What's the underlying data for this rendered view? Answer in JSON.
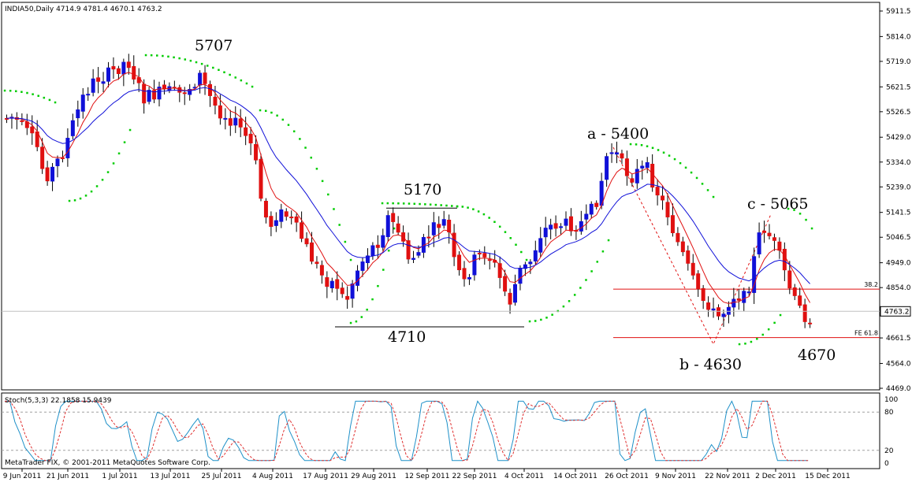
{
  "header": {
    "symbol_line": "INDIA50,Daily  4714.9 4781.4 4670.1 4763.2"
  },
  "stoch": {
    "label": "Stoch(5,3,3) 22.1858 15.9439",
    "levels": [
      "100",
      "80",
      "20",
      "0"
    ],
    "colors": {
      "k": "#1e90c8",
      "d": "#e03030"
    }
  },
  "copyright": "MetaTrader FIX, © 2001-2011 MetaQuotes Software Corp.",
  "chart_data": {
    "type": "candlestick",
    "title": "INDIA50,Daily",
    "ohlc_header": [
      4714.9,
      4781.4,
      4670.1,
      4763.2
    ],
    "last_price_label": "4763.2",
    "y_axis": {
      "ticks": [
        "5911.5",
        "5814.0",
        "5719.0",
        "5621.5",
        "5526.5",
        "5429.0",
        "5334.0",
        "5239.0",
        "5141.5",
        "5046.5",
        "4949.0",
        "4854.0",
        "4759.0",
        "4661.5",
        "4564.0",
        "4469.0"
      ],
      "range": [
        4469,
        5911.5
      ]
    },
    "x_axis": {
      "ticks": [
        "9 Jun 2011",
        "21 Jun 2011",
        "1 Jul 2011",
        "13 Jul 2011",
        "25 Jul 2011",
        "4 Aug 2011",
        "17 Aug 2011",
        "29 Aug 2011",
        "12 Sep 2011",
        "22 Sep 2011",
        "4 Oct 2011",
        "14 Oct 2011",
        "26 Oct 2011",
        "9 Nov 2011",
        "22 Nov 2011",
        "2 Dec 2011",
        "15 Dec 2011"
      ]
    },
    "annotations": [
      {
        "text": "5707",
        "price": 5707
      },
      {
        "text": "5170",
        "price": 5170
      },
      {
        "text": "4710",
        "price": 4710
      },
      {
        "text": "a - 5400",
        "price": 5400
      },
      {
        "text": "b - 4630",
        "price": 4630
      },
      {
        "text": "c - 5065",
        "price": 5065
      },
      {
        "text": "4670",
        "price": 4670
      }
    ],
    "fib_levels": [
      {
        "label": "38.2",
        "price": 4848
      },
      {
        "label": "FE 61.8",
        "price": 4663
      }
    ],
    "colors": {
      "up": "#1010d8",
      "down": "#e01010",
      "ma_fast": "#e01010",
      "ma_slow": "#1010d8",
      "psar": "#00cc00"
    },
    "stochastic": {
      "k_last": 22.1858,
      "d_last": 15.9439,
      "levels": [
        80,
        20
      ]
    }
  }
}
